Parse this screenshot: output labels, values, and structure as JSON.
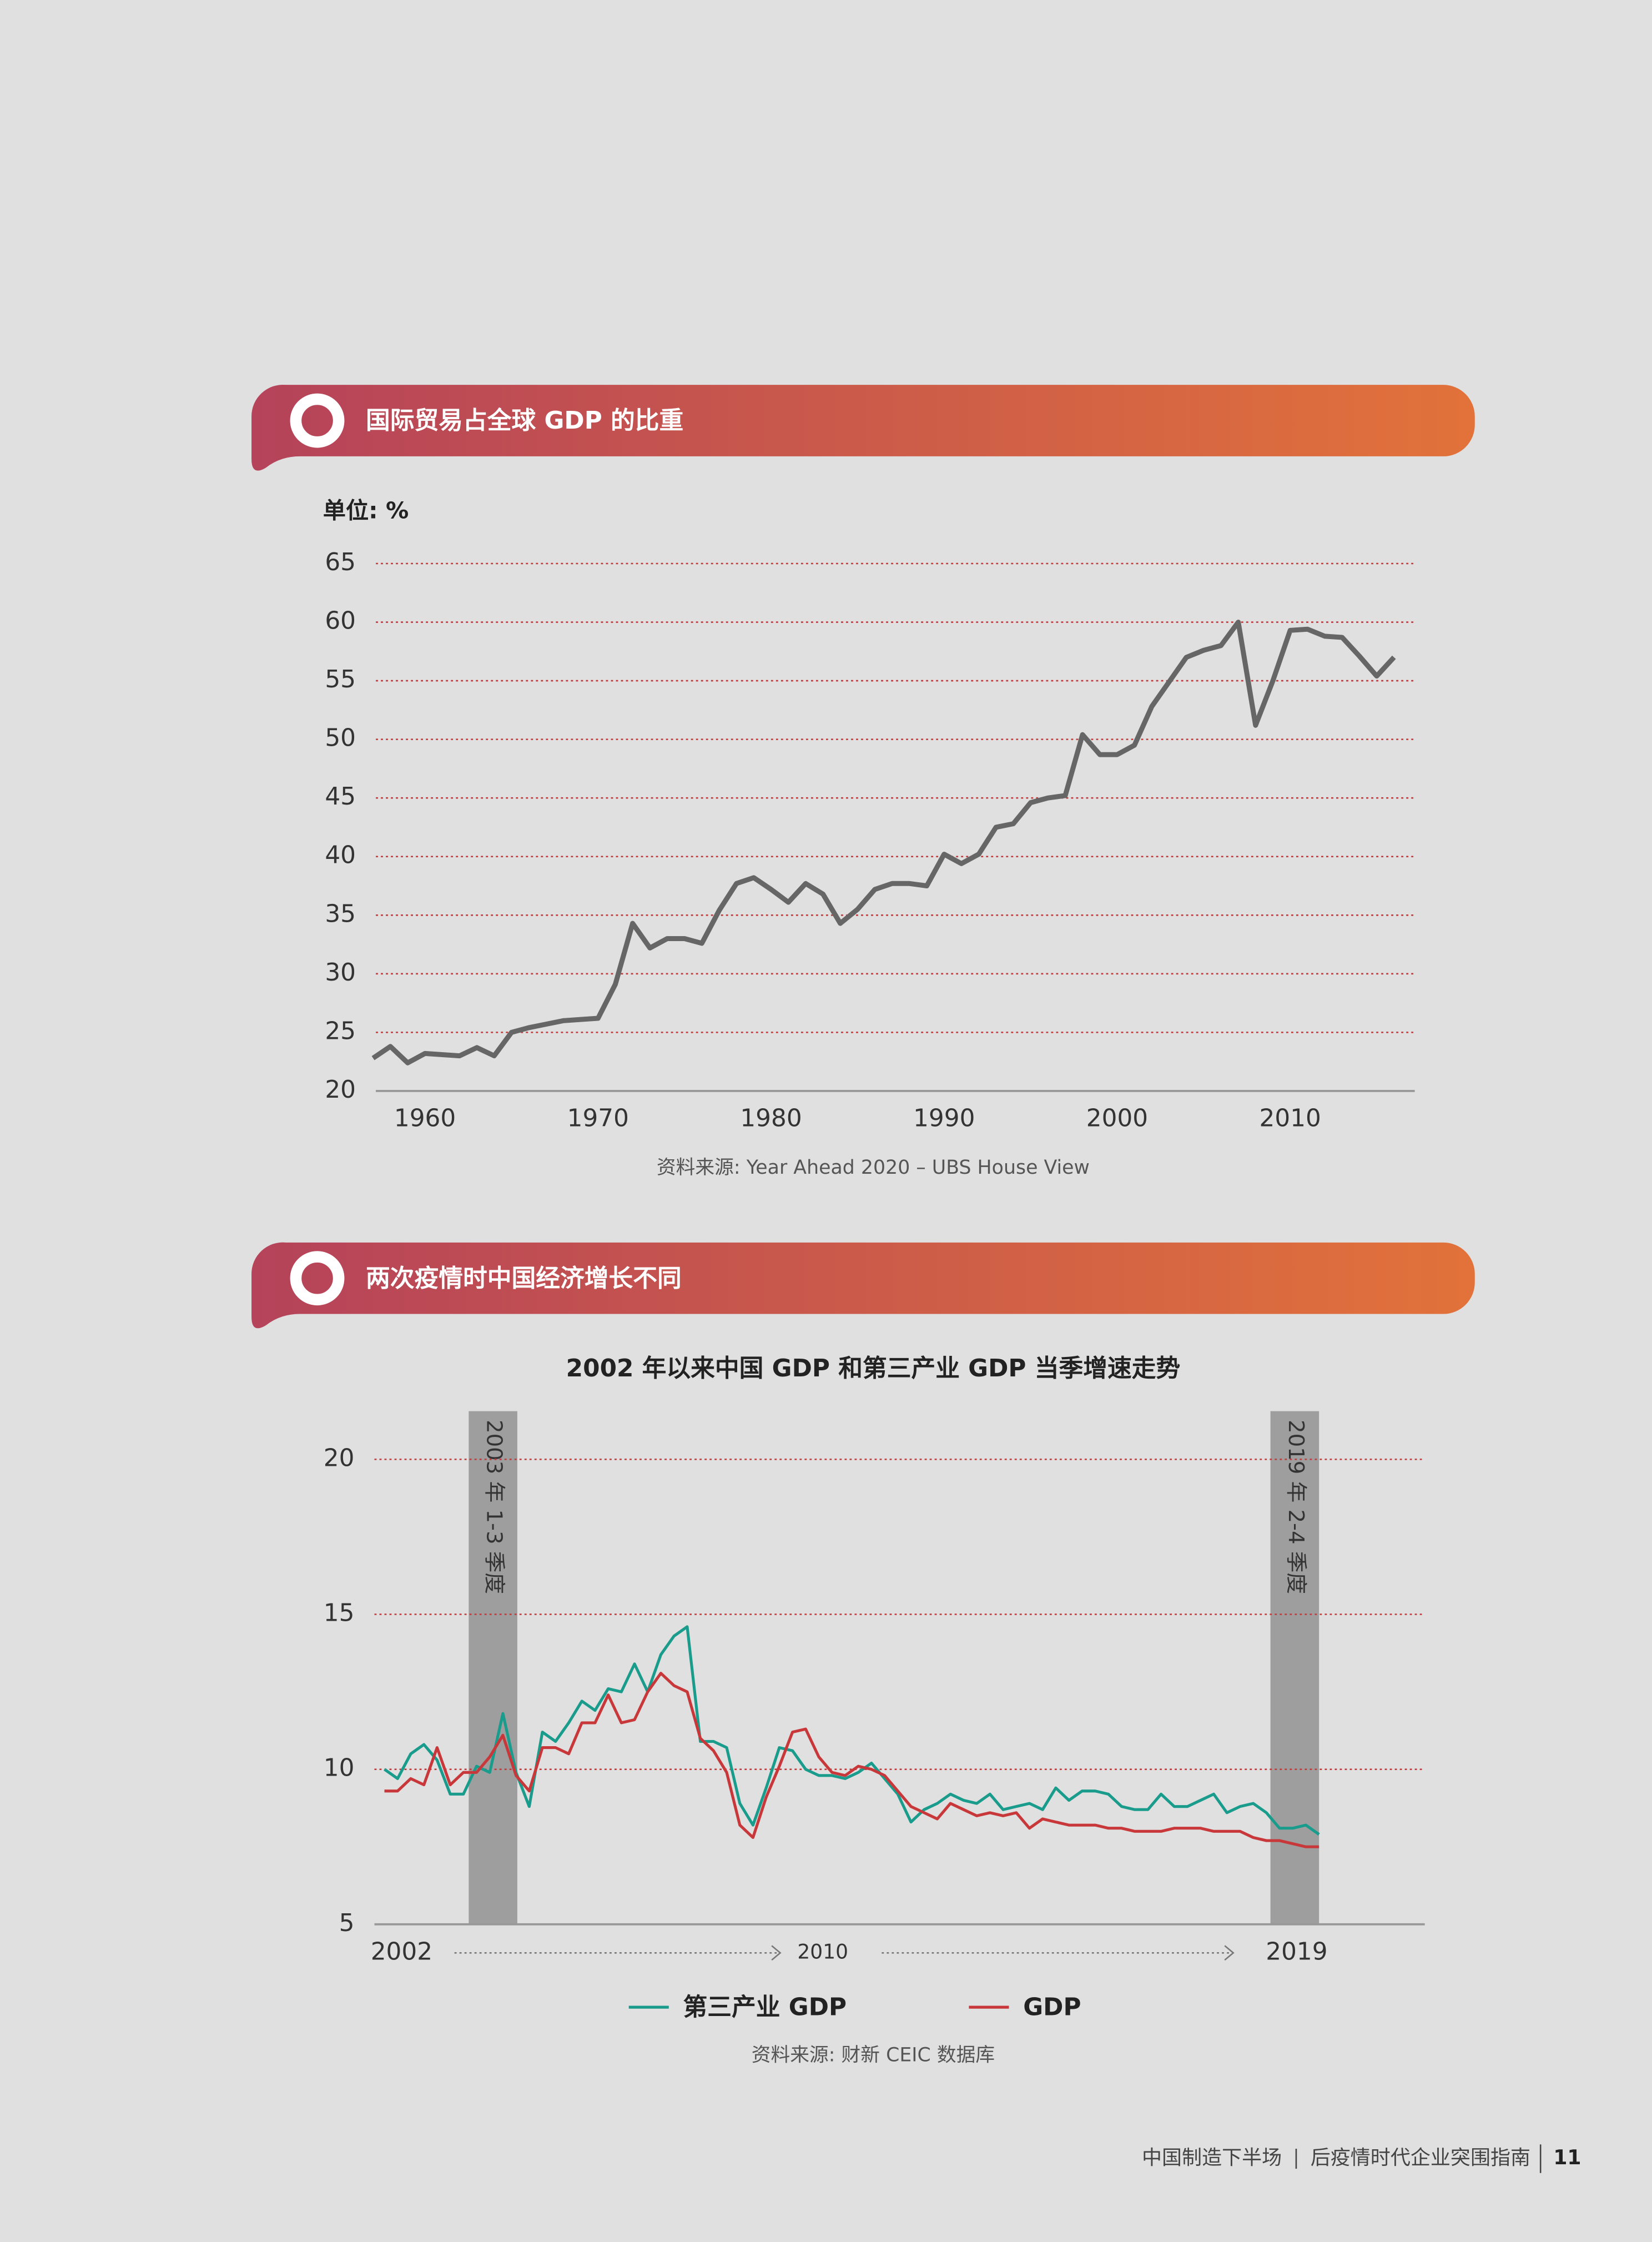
{
  "sections": [
    {
      "header": "国际贸易占全球 GDP 的比重"
    },
    {
      "header": "两次疫情时中国经济增长不同"
    }
  ],
  "chart_data": [
    {
      "type": "line",
      "y_label": "单位: %",
      "source": "资料来源: Year Ahead 2020 – UBS House View",
      "x": [
        1957,
        1958,
        1959,
        1960,
        1961,
        1962,
        1963,
        1964,
        1965,
        1966,
        1967,
        1968,
        1969,
        1970,
        1971,
        1972,
        1973,
        1974,
        1975,
        1976,
        1977,
        1978,
        1979,
        1980,
        1981,
        1982,
        1983,
        1984,
        1985,
        1986,
        1987,
        1988,
        1989,
        1990,
        1991,
        1992,
        1993,
        1994,
        1995,
        1996,
        1997,
        1998,
        1999,
        2000,
        2001,
        2002,
        2003,
        2004,
        2005,
        2006,
        2007,
        2008,
        2009,
        2010,
        2011,
        2012,
        2013,
        2014,
        2015,
        2016
      ],
      "values": [
        22.8,
        23.8,
        22.4,
        23.2,
        23.1,
        23.0,
        23.7,
        23.0,
        25.0,
        25.4,
        25.7,
        26.0,
        26.1,
        26.2,
        29.1,
        34.3,
        32.2,
        33.0,
        33.0,
        32.6,
        35.4,
        37.7,
        38.2,
        37.2,
        36.1,
        37.7,
        36.8,
        34.3,
        35.5,
        37.2,
        37.7,
        37.7,
        37.5,
        40.2,
        39.4,
        40.2,
        42.5,
        42.8,
        44.6,
        45.0,
        45.2,
        50.4,
        48.7,
        48.7,
        49.5,
        52.8,
        54.9,
        57.0,
        57.6,
        58.0,
        60.0,
        51.2,
        55.0,
        59.3,
        59.4,
        58.8,
        58.7,
        57.1,
        55.4,
        57.0
      ],
      "color": "#666666",
      "xlim": [
        1956.5,
        2017.2
      ],
      "xticks": [
        1960,
        1970,
        1980,
        1990,
        2000,
        2010
      ],
      "ylim": [
        20,
        65
      ],
      "yticks": [
        20,
        25,
        30,
        35,
        40,
        45,
        50,
        55,
        60,
        65
      ],
      "grid": true
    },
    {
      "type": "line",
      "title": "2002 年以来中国 GDP 和第三产业 GDP 当季增速走势",
      "source": "资料来源: 财新 CEIC 数据库",
      "annotations": [
        "2003 年 1-3 季度",
        "2019 年 2-4 季度"
      ],
      "categories": [
        "2002",
        null,
        null,
        null,
        null,
        null,
        null,
        null,
        null,
        null,
        null,
        null,
        null,
        null,
        null,
        null,
        null,
        null,
        null,
        null,
        null,
        null,
        null,
        null,
        null,
        null,
        null,
        null,
        null,
        null,
        null,
        null,
        "2010",
        null,
        null,
        null,
        null,
        null,
        null,
        null,
        null,
        null,
        null,
        null,
        null,
        null,
        null,
        null,
        null,
        null,
        null,
        null,
        null,
        null,
        null,
        null,
        null,
        null,
        null,
        null,
        null,
        null,
        null,
        null,
        null,
        null,
        null,
        null,
        "2019",
        null,
        null,
        null
      ],
      "series": [
        {
          "name": "第三产业 GDP",
          "color": "#1a9c8c",
          "values": [
            10.0,
            9.7,
            10.5,
            10.8,
            10.3,
            9.2,
            9.2,
            10.1,
            9.9,
            11.8,
            9.9,
            8.8,
            11.2,
            10.9,
            11.5,
            12.2,
            11.9,
            12.6,
            12.5,
            13.4,
            12.5,
            13.7,
            14.3,
            14.6,
            10.9,
            10.9,
            10.7,
            8.9,
            8.2,
            9.4,
            10.7,
            10.6,
            10.0,
            9.8,
            9.8,
            9.7,
            9.9,
            10.2,
            9.7,
            9.2,
            8.3,
            8.7,
            8.9,
            9.2,
            9.0,
            8.9,
            9.2,
            8.7,
            8.8,
            8.9,
            8.7,
            9.4,
            9.0,
            9.3,
            9.3,
            9.2,
            8.8,
            8.7,
            8.7,
            9.2,
            8.8,
            8.8,
            9.0,
            9.2,
            8.6,
            8.8,
            8.9,
            8.6,
            8.1,
            8.1,
            8.2,
            7.9
          ]
        },
        {
          "name": "GDP",
          "color": "#c8383a",
          "values": [
            9.3,
            9.3,
            9.7,
            9.5,
            10.7,
            9.5,
            9.9,
            9.9,
            10.4,
            11.1,
            9.8,
            9.3,
            10.7,
            10.7,
            10.5,
            11.5,
            11.5,
            12.4,
            11.5,
            11.6,
            12.5,
            13.1,
            12.7,
            12.5,
            11.0,
            10.6,
            9.9,
            8.2,
            7.8,
            9.1,
            10.1,
            11.2,
            11.3,
            10.4,
            9.9,
            9.8,
            10.1,
            10.0,
            9.8,
            9.3,
            8.8,
            8.6,
            8.4,
            8.9,
            8.7,
            8.5,
            8.6,
            8.5,
            8.6,
            8.1,
            8.4,
            8.3,
            8.2,
            8.2,
            8.2,
            8.1,
            8.1,
            8.0,
            8.0,
            8.0,
            8.1,
            8.1,
            8.1,
            8.0,
            8.0,
            8.0,
            7.8,
            7.7,
            7.7,
            7.6,
            7.5,
            7.5
          ]
        }
      ],
      "ylim": [
        5,
        21.6
      ],
      "yticks": [
        5,
        10,
        15,
        20
      ],
      "grid": true
    }
  ],
  "footer": {
    "left": "中国制造下半场",
    "right": "后疫情时代企业突围指南",
    "page": "11"
  }
}
